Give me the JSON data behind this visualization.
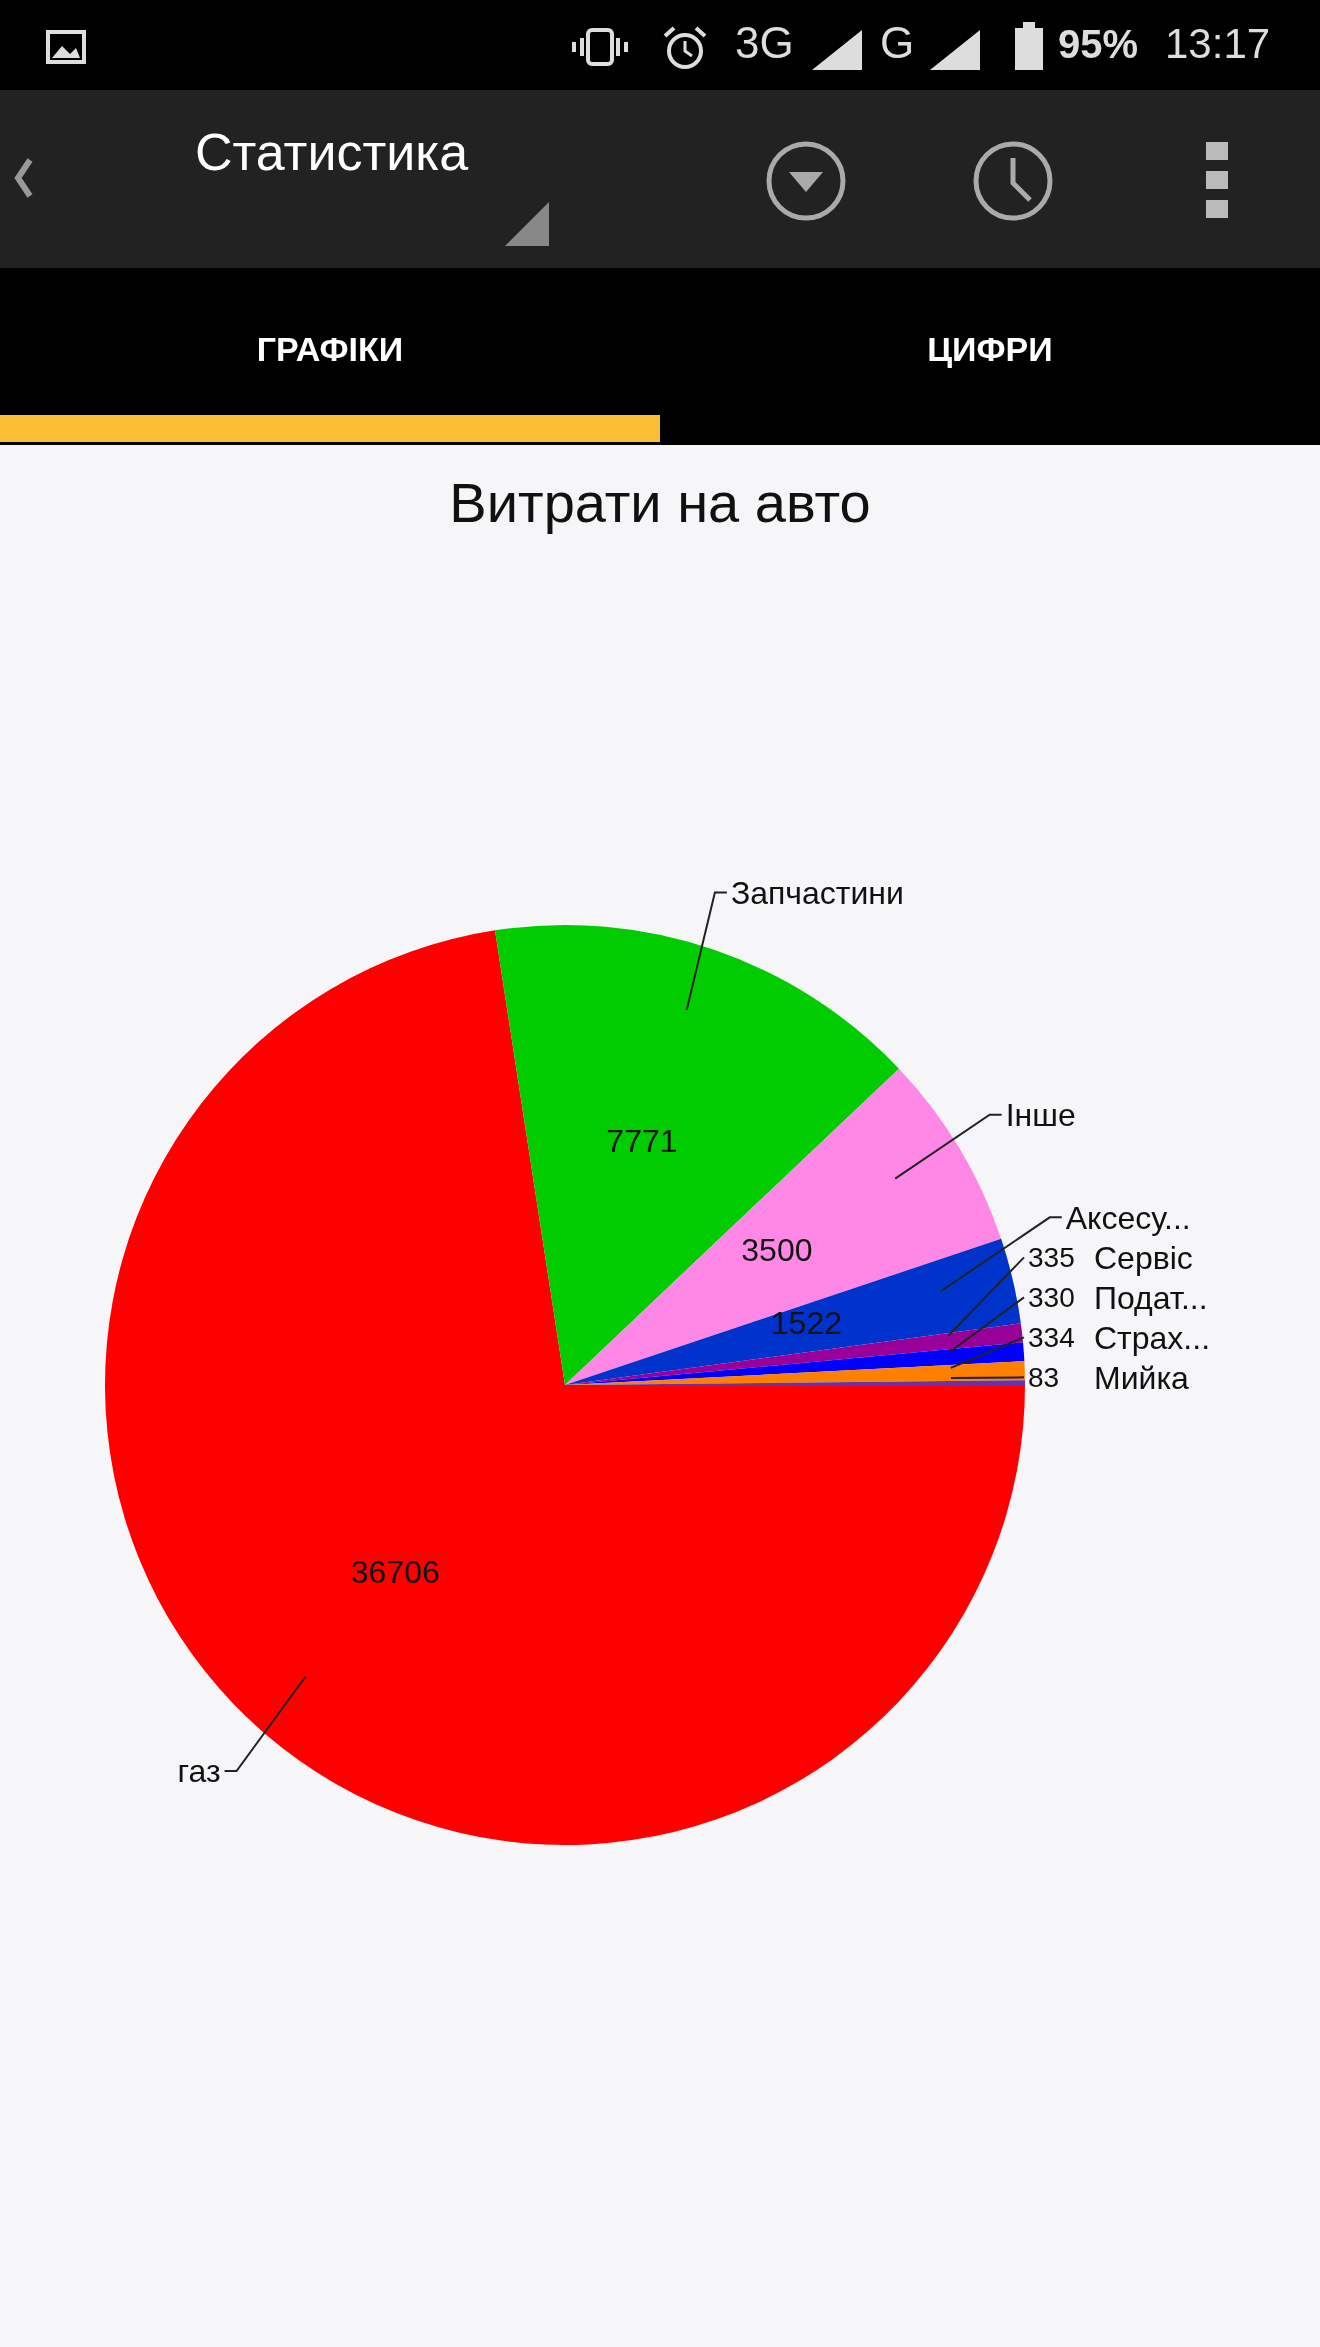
{
  "chart_data": {
    "type": "pie",
    "title": "Витрати на авто",
    "categories": [
      "газ",
      "Запчастини",
      "Інше",
      "Аксесу...",
      "Сервіс",
      "Подат...",
      "Страх...",
      "Мийка"
    ],
    "values": [
      36706,
      7771,
      3500,
      1522,
      335,
      330,
      334,
      83
    ],
    "colors": [
      "#ff0000",
      "#00cc00",
      "#ff88e6",
      "#0033cc",
      "#990099",
      "#0000ff",
      "#ff8000",
      "#6633aa"
    ],
    "data_labels": true,
    "annotations": [
      "3G",
      "G",
      "95%",
      "13:17",
      "Статистика",
      "ГРАФІКИ",
      "ЦИФРИ"
    ]
  }
}
